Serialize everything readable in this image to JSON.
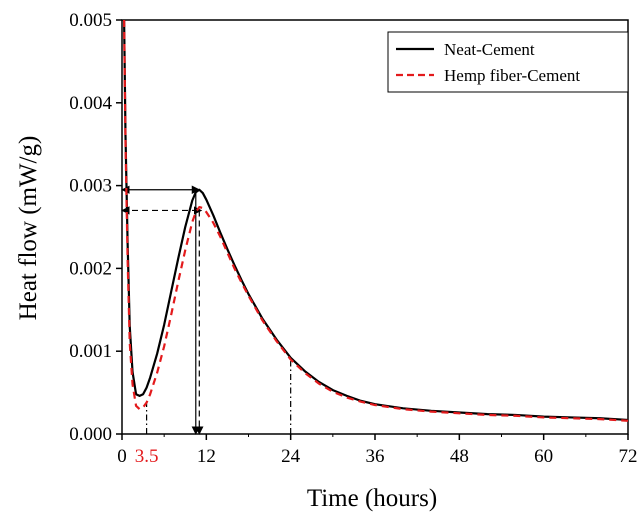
{
  "chart_data": {
    "type": "line",
    "xlabel": "Time (hours)",
    "ylabel": "Heat flow (mW/g)",
    "xlim": [
      0,
      72
    ],
    "ylim": [
      0,
      0.005
    ],
    "x_ticks": [
      0,
      12,
      24,
      36,
      48,
      60,
      72
    ],
    "x_tick_labels": [
      "0",
      "12",
      "24",
      "36",
      "48",
      "60",
      "72"
    ],
    "y_ticks": [
      0,
      0.001,
      0.002,
      0.003,
      0.004,
      0.005
    ],
    "y_tick_labels": [
      "0.000",
      "0.001",
      "0.002",
      "0.003",
      "0.004",
      "0.005"
    ],
    "extra_x_label": {
      "text": "3.5",
      "x": 3.5,
      "color": "#e31a1c"
    },
    "legend_position": "top-right",
    "grid": false,
    "series": [
      {
        "name": "Neat-Cement",
        "color": "#000000",
        "dash": "solid",
        "x": [
          0.3,
          0.5,
          0.8,
          1.1,
          1.5,
          2,
          2.5,
          3,
          3.5,
          4,
          5,
          6,
          7,
          8,
          9,
          10,
          10.5,
          11,
          11.5,
          12,
          13,
          14,
          15,
          16,
          17,
          18,
          20,
          22,
          24,
          26,
          28,
          30,
          32,
          34,
          36,
          40,
          44,
          48,
          52,
          56,
          60,
          64,
          68,
          72
        ],
        "y": [
          0.005,
          0.0036,
          0.0023,
          0.0013,
          0.00075,
          0.00048,
          0.00046,
          0.00048,
          0.00056,
          0.00068,
          0.00097,
          0.00132,
          0.00172,
          0.00212,
          0.0025,
          0.00282,
          0.00292,
          0.00295,
          0.00291,
          0.00283,
          0.00264,
          0.00243,
          0.00223,
          0.00204,
          0.00186,
          0.00169,
          0.00139,
          0.00114,
          0.00092,
          0.00076,
          0.00063,
          0.00053,
          0.00046,
          0.0004,
          0.00036,
          0.00031,
          0.00028,
          0.00026,
          0.00024,
          0.00023,
          0.00021,
          0.0002,
          0.00019,
          0.00017
        ]
      },
      {
        "name": "Hemp fiber-Cement",
        "color": "#e31a1c",
        "dash": "dashed",
        "x": [
          0.3,
          0.5,
          0.8,
          1.1,
          1.5,
          2,
          2.5,
          3,
          3.5,
          4,
          5,
          6,
          7,
          8,
          9,
          10,
          10.5,
          11,
          11.5,
          12,
          13,
          14,
          15,
          16,
          17,
          18,
          20,
          22,
          24,
          26,
          28,
          30,
          32,
          34,
          36,
          40,
          44,
          48,
          52,
          56,
          60,
          64,
          68,
          72
        ],
        "y": [
          0.005,
          0.0035,
          0.0021,
          0.0011,
          0.0006,
          0.00034,
          0.0003,
          0.00032,
          0.00038,
          0.00048,
          0.00074,
          0.00106,
          0.00144,
          0.00184,
          0.00222,
          0.00256,
          0.00268,
          0.00274,
          0.00273,
          0.00268,
          0.00255,
          0.00238,
          0.00219,
          0.002,
          0.00183,
          0.00167,
          0.00137,
          0.00112,
          0.0009,
          0.00074,
          0.00061,
          0.00051,
          0.00044,
          0.00039,
          0.00035,
          0.0003,
          0.00027,
          0.00025,
          0.00023,
          0.00022,
          0.0002,
          0.00019,
          0.00018,
          0.00016
        ]
      }
    ],
    "annotations": [
      {
        "kind": "double-arrow-h",
        "series": "Neat-Cement",
        "x": [
          0,
          11
        ],
        "y": 0.00295,
        "style": "solid"
      },
      {
        "kind": "double-arrow-h",
        "series": "Hemp fiber-Cement",
        "x": [
          0,
          11.3
        ],
        "y": 0.0027,
        "style": "dashed"
      },
      {
        "kind": "arrow-down",
        "series": "Neat-Cement",
        "x": 10.5,
        "y": [
          0.00295,
          0
        ],
        "style": "solid"
      },
      {
        "kind": "arrow-down",
        "series": "Hemp fiber-Cement",
        "x": 11.0,
        "y": [
          0.0027,
          0
        ],
        "style": "dashed"
      },
      {
        "kind": "vline",
        "x": 3.5,
        "y": [
          0,
          0.0004
        ],
        "style": "dashdot"
      },
      {
        "kind": "vline",
        "x": 24,
        "y": [
          0,
          0.00088
        ],
        "style": "dashdot"
      }
    ]
  }
}
